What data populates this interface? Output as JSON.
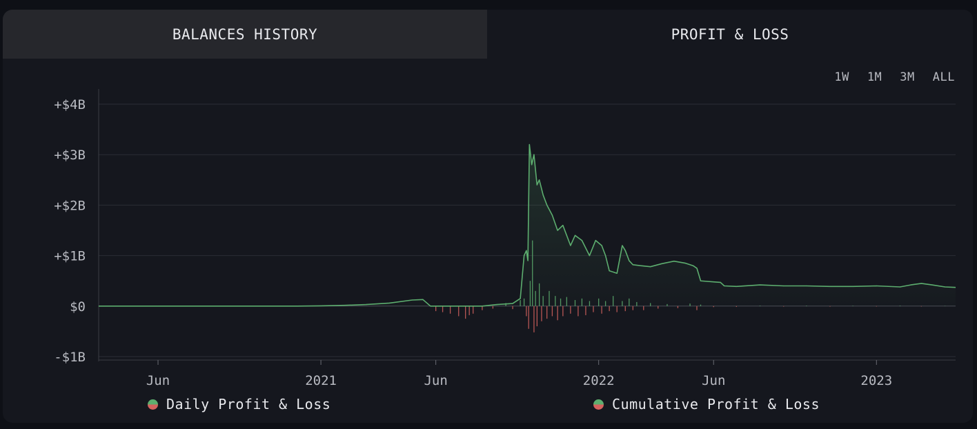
{
  "tabs": [
    {
      "label": "BALANCES HISTORY"
    },
    {
      "label": "PROFIT & LOSS"
    }
  ],
  "ranges": [
    "1W",
    "1M",
    "3M",
    "ALL"
  ],
  "legend": {
    "daily": "Daily Profit & Loss",
    "cumulative": "Cumulative Profit & Loss",
    "colors": {
      "positive": "#5dae6f",
      "negative": "#d4625e"
    }
  },
  "chart_data": {
    "type": "line",
    "grid": true,
    "legend_position": "bottom",
    "x_range": [
      "2020-03-15",
      "2023-04-15"
    ],
    "y_range": [
      -1000000000,
      4000000000
    ],
    "y_ticks": [
      {
        "value": 4000000000,
        "label": "+$4B"
      },
      {
        "value": 3000000000,
        "label": "+$3B"
      },
      {
        "value": 2000000000,
        "label": "+$2B"
      },
      {
        "value": 1000000000,
        "label": "+$1B"
      },
      {
        "value": 0,
        "label": "$0"
      },
      {
        "value": -1000000000,
        "label": "-$1B"
      }
    ],
    "x_ticks": [
      {
        "date": "2020-06-01",
        "label": "Jun"
      },
      {
        "date": "2021-01-01",
        "label": "2021"
      },
      {
        "date": "2021-06-01",
        "label": "Jun"
      },
      {
        "date": "2022-01-01",
        "label": "2022"
      },
      {
        "date": "2022-06-01",
        "label": "Jun"
      },
      {
        "date": "2023-01-01",
        "label": "2023"
      }
    ],
    "series": [
      {
        "name": "Cumulative Profit & Loss",
        "x": [
          "2020-03-15",
          "2020-06-01",
          "2020-09-01",
          "2020-12-01",
          "2021-01-01",
          "2021-02-01",
          "2021-03-01",
          "2021-04-01",
          "2021-05-01",
          "2021-05-15",
          "2021-05-25",
          "2021-06-01",
          "2021-07-01",
          "2021-07-20",
          "2021-08-01",
          "2021-08-20",
          "2021-09-10",
          "2021-09-20",
          "2021-09-25",
          "2021-09-28",
          "2021-09-30",
          "2021-10-02",
          "2021-10-05",
          "2021-10-08",
          "2021-10-12",
          "2021-10-15",
          "2021-10-20",
          "2021-10-25",
          "2021-11-01",
          "2021-11-08",
          "2021-11-15",
          "2021-11-25",
          "2021-12-01",
          "2021-12-10",
          "2021-12-20",
          "2021-12-28",
          "2022-01-05",
          "2022-01-10",
          "2022-01-15",
          "2022-01-25",
          "2022-02-01",
          "2022-02-05",
          "2022-02-10",
          "2022-02-15",
          "2022-02-25",
          "2022-03-10",
          "2022-03-25",
          "2022-04-10",
          "2022-04-25",
          "2022-05-05",
          "2022-05-10",
          "2022-05-15",
          "2022-06-01",
          "2022-06-10",
          "2022-06-15",
          "2022-07-01",
          "2022-08-01",
          "2022-09-01",
          "2022-10-01",
          "2022-11-01",
          "2022-12-01",
          "2023-01-01",
          "2023-02-01",
          "2023-02-15",
          "2023-03-01",
          "2023-03-15",
          "2023-04-01",
          "2023-04-15"
        ],
        "y": [
          0,
          0,
          0,
          0,
          5000000,
          15000000,
          30000000,
          60000000,
          120000000,
          130000000,
          0,
          0,
          0,
          0,
          0,
          30000000,
          50000000,
          150000000,
          1000000000,
          1100000000,
          900000000,
          3200000000,
          2800000000,
          3000000000,
          2400000000,
          2500000000,
          2200000000,
          2000000000,
          1800000000,
          1500000000,
          1600000000,
          1200000000,
          1400000000,
          1300000000,
          1000000000,
          1300000000,
          1200000000,
          1000000000,
          700000000,
          650000000,
          1200000000,
          1100000000,
          900000000,
          820000000,
          800000000,
          780000000,
          840000000,
          890000000,
          850000000,
          800000000,
          750000000,
          500000000,
          480000000,
          470000000,
          400000000,
          390000000,
          420000000,
          400000000,
          400000000,
          390000000,
          390000000,
          400000000,
          380000000,
          420000000,
          450000000,
          420000000,
          380000000,
          370000000
        ]
      },
      {
        "name": "Daily Profit & Loss",
        "x": [
          "2021-06-01",
          "2021-06-10",
          "2021-06-20",
          "2021-07-01",
          "2021-07-10",
          "2021-07-15",
          "2021-07-20",
          "2021-08-01",
          "2021-08-15",
          "2021-09-01",
          "2021-09-10",
          "2021-09-20",
          "2021-09-25",
          "2021-09-28",
          "2021-10-01",
          "2021-10-03",
          "2021-10-06",
          "2021-10-08",
          "2021-10-10",
          "2021-10-12",
          "2021-10-15",
          "2021-10-18",
          "2021-10-20",
          "2021-10-25",
          "2021-10-28",
          "2021-11-01",
          "2021-11-05",
          "2021-11-08",
          "2021-11-12",
          "2021-11-15",
          "2021-11-20",
          "2021-11-25",
          "2021-12-01",
          "2021-12-05",
          "2021-12-10",
          "2021-12-15",
          "2021-12-20",
          "2021-12-25",
          "2022-01-01",
          "2022-01-05",
          "2022-01-10",
          "2022-01-15",
          "2022-01-20",
          "2022-01-25",
          "2022-02-01",
          "2022-02-05",
          "2022-02-10",
          "2022-02-15",
          "2022-02-20",
          "2022-03-01",
          "2022-03-10",
          "2022-03-20",
          "2022-04-01",
          "2022-04-15",
          "2022-05-01",
          "2022-05-10",
          "2022-05-15",
          "2022-06-01",
          "2022-07-01",
          "2022-08-01",
          "2022-09-01",
          "2022-10-01",
          "2022-11-01",
          "2022-12-01",
          "2023-01-01",
          "2023-02-01",
          "2023-03-01",
          "2023-04-01"
        ],
        "y": [
          -100000000,
          -120000000,
          -150000000,
          -200000000,
          -250000000,
          -180000000,
          -150000000,
          -80000000,
          -50000000,
          60000000,
          -60000000,
          120000000,
          150000000,
          -200000000,
          -450000000,
          500000000,
          1300000000,
          -520000000,
          300000000,
          -400000000,
          450000000,
          -300000000,
          200000000,
          -250000000,
          300000000,
          -200000000,
          200000000,
          -280000000,
          150000000,
          -200000000,
          180000000,
          -150000000,
          120000000,
          -200000000,
          150000000,
          -180000000,
          100000000,
          -120000000,
          150000000,
          -150000000,
          100000000,
          -100000000,
          200000000,
          -120000000,
          100000000,
          -100000000,
          150000000,
          -80000000,
          80000000,
          -80000000,
          60000000,
          -50000000,
          40000000,
          -40000000,
          50000000,
          -80000000,
          30000000,
          -20000000,
          -15000000,
          10000000,
          -10000000,
          10000000,
          -10000000,
          8000000,
          -8000000,
          10000000,
          -8000000,
          5000000
        ]
      }
    ]
  }
}
